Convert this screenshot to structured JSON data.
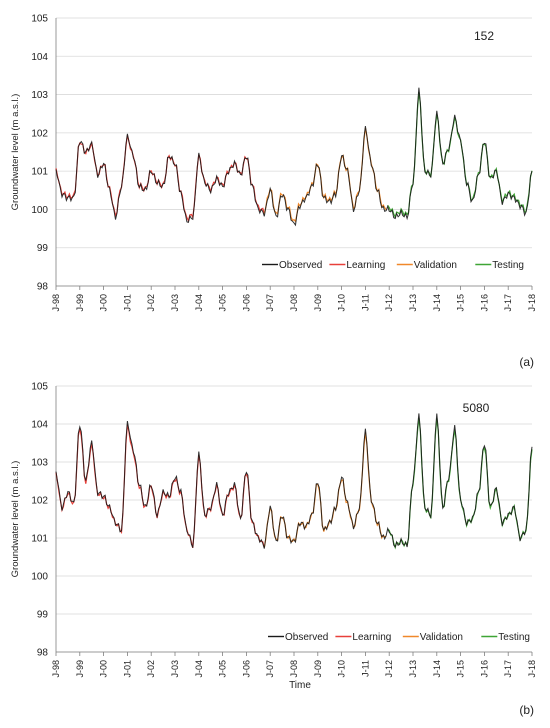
{
  "chart_data": [
    {
      "type": "line",
      "title": "152",
      "panel_label": "(a)",
      "xlabel": "",
      "ylabel": "Groundwater level (m a.s.l.)",
      "ylim": [
        98,
        105
      ],
      "yticks": [
        98,
        99,
        100,
        101,
        102,
        103,
        104,
        105
      ],
      "xlim": [
        1998.0,
        2018.0
      ],
      "xtick_labels": [
        "J-98",
        "J-99",
        "J-00",
        "J-01",
        "J-02",
        "J-03",
        "J-04",
        "J-05",
        "J-06",
        "J-07",
        "J-08",
        "J-09",
        "J-10",
        "J-11",
        "J-12",
        "J-13",
        "J-14",
        "J-15",
        "J-16",
        "J-17",
        "J-18"
      ],
      "grid": true,
      "legend": "bottom-right",
      "series": [
        {
          "name": "Observed",
          "color": "#1a1a1a",
          "x": [
            1998.0,
            1998.25,
            1998.5,
            1998.75,
            1999.0,
            1999.25,
            1999.5,
            1999.75,
            2000.0,
            2000.25,
            2000.5,
            2000.75,
            2001.0,
            2001.25,
            2001.5,
            2001.75,
            2002.0,
            2002.25,
            2002.5,
            2002.75,
            2003.0,
            2003.25,
            2003.5,
            2003.75,
            2004.0,
            2004.25,
            2004.5,
            2004.75,
            2005.0,
            2005.25,
            2005.5,
            2005.75,
            2006.0,
            2006.25,
            2006.5,
            2006.75,
            2007.0,
            2007.25,
            2007.5,
            2007.75,
            2008.0,
            2008.25,
            2008.5,
            2008.75,
            2009.0,
            2009.25,
            2009.5,
            2009.75,
            2010.0,
            2010.25,
            2010.5,
            2010.75,
            2011.0,
            2011.25,
            2011.5,
            2011.75,
            2012.0,
            2012.25,
            2012.5,
            2012.75,
            2013.0,
            2013.25,
            2013.5,
            2013.75,
            2014.0,
            2014.25,
            2014.5,
            2014.75,
            2015.0,
            2015.25,
            2015.5,
            2015.75,
            2016.0,
            2016.25,
            2016.5,
            2016.75,
            2017.0,
            2017.25,
            2017.5,
            2017.75,
            2018.0
          ],
          "values": [
            101.0,
            100.4,
            100.3,
            100.3,
            101.8,
            101.5,
            101.7,
            100.9,
            101.2,
            100.5,
            99.8,
            100.6,
            101.9,
            101.4,
            100.6,
            100.5,
            101.0,
            100.7,
            100.6,
            101.4,
            101.2,
            100.4,
            99.7,
            99.8,
            101.4,
            100.7,
            100.5,
            100.8,
            100.6,
            101.0,
            101.2,
            100.9,
            101.4,
            100.6,
            100.0,
            99.9,
            100.5,
            99.8,
            100.4,
            100.0,
            99.6,
            100.1,
            100.3,
            100.6,
            101.2,
            100.3,
            100.2,
            100.4,
            101.4,
            101.0,
            100.0,
            100.5,
            102.1,
            101.2,
            100.5,
            100.0,
            100.0,
            99.8,
            99.9,
            99.8,
            100.7,
            103.1,
            101.0,
            100.9,
            102.5,
            101.2,
            101.6,
            102.4,
            101.8,
            100.7,
            100.2,
            100.9,
            101.8,
            100.8,
            101.0,
            100.2,
            100.4,
            100.3,
            100.1,
            99.9,
            101.0
          ]
        },
        {
          "name": "Learning",
          "color": "#e8403a",
          "x_range": [
            "J-98",
            "J-07"
          ]
        },
        {
          "name": "Validation",
          "color": "#f0882a",
          "x_range": [
            "J-07",
            "J-12"
          ]
        },
        {
          "name": "Testing",
          "color": "#3fa535",
          "x_range": [
            "J-12",
            "J-18"
          ]
        }
      ]
    },
    {
      "type": "line",
      "title": "5080",
      "panel_label": "(b)",
      "xlabel": "Time",
      "ylabel": "Groundwater level (m a.s.l.)",
      "ylim": [
        98,
        105
      ],
      "yticks": [
        98,
        99,
        100,
        101,
        102,
        103,
        104,
        105
      ],
      "xlim": [
        1998.0,
        2018.0
      ],
      "xtick_labels": [
        "J-98",
        "J-99",
        "J-00",
        "J-01",
        "J-02",
        "J-03",
        "J-04",
        "J-05",
        "J-06",
        "J-07",
        "J-08",
        "J-09",
        "J-10",
        "J-11",
        "J-12",
        "J-13",
        "J-14",
        "J-15",
        "J-16",
        "J-17",
        "J-18"
      ],
      "grid": true,
      "legend": "bottom-right",
      "series": [
        {
          "name": "Observed",
          "color": "#1a1a1a",
          "x": [
            1998.0,
            1998.25,
            1998.5,
            1998.75,
            1999.0,
            1999.25,
            1999.5,
            1999.75,
            2000.0,
            2000.25,
            2000.5,
            2000.75,
            2001.0,
            2001.25,
            2001.5,
            2001.75,
            2002.0,
            2002.25,
            2002.5,
            2002.75,
            2003.0,
            2003.25,
            2003.5,
            2003.75,
            2004.0,
            2004.25,
            2004.5,
            2004.75,
            2005.0,
            2005.25,
            2005.5,
            2005.75,
            2006.0,
            2006.25,
            2006.5,
            2006.75,
            2007.0,
            2007.25,
            2007.5,
            2007.75,
            2008.0,
            2008.25,
            2008.5,
            2008.75,
            2009.0,
            2009.25,
            2009.5,
            2009.75,
            2010.0,
            2010.25,
            2010.5,
            2010.75,
            2011.0,
            2011.25,
            2011.5,
            2011.75,
            2012.0,
            2012.25,
            2012.5,
            2012.75,
            2013.0,
            2013.25,
            2013.5,
            2013.75,
            2014.0,
            2014.25,
            2014.5,
            2014.75,
            2015.0,
            2015.25,
            2015.5,
            2015.75,
            2016.0,
            2016.25,
            2016.5,
            2016.75,
            2017.0,
            2017.25,
            2017.5,
            2017.75,
            2018.0
          ],
          "values": [
            102.7,
            101.8,
            102.2,
            101.9,
            104.0,
            102.5,
            103.5,
            102.2,
            102.1,
            101.8,
            101.4,
            101.2,
            104.0,
            103.3,
            102.4,
            101.8,
            102.4,
            101.6,
            102.2,
            102.1,
            102.6,
            102.2,
            101.2,
            100.8,
            103.2,
            101.6,
            101.8,
            102.4,
            101.6,
            102.2,
            102.4,
            101.5,
            102.8,
            101.4,
            101.0,
            100.8,
            101.8,
            100.9,
            101.6,
            101.0,
            100.9,
            101.4,
            101.3,
            101.6,
            102.5,
            101.2,
            101.4,
            101.8,
            102.6,
            101.9,
            101.3,
            101.8,
            103.8,
            102.0,
            101.4,
            101.0,
            101.2,
            100.8,
            100.9,
            100.8,
            102.5,
            104.2,
            101.8,
            101.6,
            104.2,
            101.8,
            102.6,
            103.9,
            102.0,
            101.4,
            101.5,
            102.2,
            103.5,
            101.8,
            102.3,
            101.4,
            101.6,
            101.8,
            101.0,
            101.2,
            103.4
          ]
        },
        {
          "name": "Learning",
          "color": "#e8403a",
          "x_range": [
            "J-98",
            "J-07"
          ]
        },
        {
          "name": "Validation",
          "color": "#f0882a",
          "x_range": [
            "J-07",
            "J-12"
          ]
        },
        {
          "name": "Testing",
          "color": "#3fa535",
          "x_range": [
            "J-12",
            "J-18"
          ]
        }
      ]
    }
  ]
}
